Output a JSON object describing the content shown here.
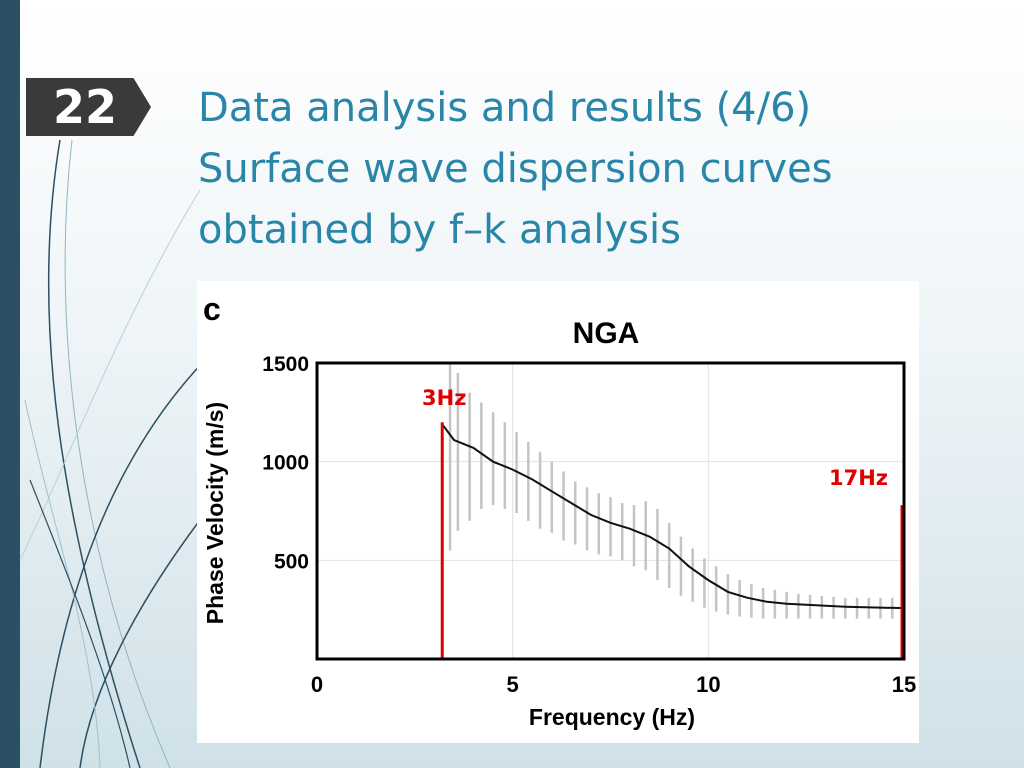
{
  "slide": {
    "number": "22",
    "title_lines": [
      "Data analysis and results (4/6)",
      "Surface wave dispersion curves",
      "obtained by f–k analysis"
    ]
  },
  "colors": {
    "accent": "#2a86a8",
    "left_bar": "#2b4f63",
    "badge": "#3a3a3a",
    "marker": "#e00000"
  },
  "figure": {
    "panel_label": "c",
    "annotations": [
      {
        "label": "3Hz",
        "x": 3.2,
        "y_top": 1200
      },
      {
        "label": "17Hz",
        "x": 15,
        "y_top": 780
      }
    ]
  },
  "chart_data": {
    "type": "line",
    "title": "NGA",
    "xlabel": "Frequency (Hz)",
    "ylabel": "Phase Velocity (m/s)",
    "xlim": [
      0,
      15
    ],
    "ylim": [
      0,
      1500
    ],
    "xticks": [
      "0",
      "5",
      "10",
      "15"
    ],
    "xtick_values": [
      0,
      5,
      10,
      15
    ],
    "yticks": [
      "500",
      "1000",
      "1500"
    ],
    "ytick_values": [
      500,
      1000,
      1500
    ],
    "grid": true,
    "series": [
      {
        "x": [
          3.2,
          3.5,
          4,
          4.5,
          5,
          5.5,
          6,
          6.5,
          7,
          7.5,
          8,
          8.5,
          9,
          9.5,
          10,
          10.5,
          11,
          11.5,
          12,
          12.5,
          13,
          13.5,
          14,
          14.5,
          15
        ],
        "y": [
          1190,
          1110,
          1070,
          1000,
          960,
          910,
          850,
          790,
          730,
          690,
          660,
          620,
          560,
          470,
          400,
          340,
          310,
          290,
          280,
          275,
          270,
          265,
          262,
          260,
          258
        ]
      }
    ],
    "error_bars": {
      "x": [
        3.4,
        3.6,
        3.9,
        4.2,
        4.5,
        4.8,
        5.1,
        5.4,
        5.7,
        6.0,
        6.3,
        6.6,
        6.9,
        7.2,
        7.5,
        7.8,
        8.1,
        8.4,
        8.7,
        9.0,
        9.3,
        9.6,
        9.9,
        10.2,
        10.5,
        10.8,
        11.1,
        11.4,
        11.7,
        12.0,
        12.3,
        12.6,
        12.9,
        13.2,
        13.5,
        13.8,
        14.1,
        14.4,
        14.7
      ],
      "low": [
        550,
        650,
        700,
        760,
        780,
        760,
        740,
        700,
        660,
        640,
        600,
        580,
        550,
        530,
        520,
        500,
        470,
        450,
        400,
        360,
        320,
        290,
        260,
        240,
        225,
        215,
        210,
        205,
        205,
        205,
        205,
        205,
        205,
        205,
        205,
        205,
        205,
        205,
        205
      ],
      "high": [
        1500,
        1450,
        1350,
        1300,
        1250,
        1200,
        1150,
        1100,
        1050,
        1000,
        950,
        900,
        870,
        840,
        820,
        790,
        780,
        800,
        760,
        690,
        620,
        560,
        510,
        470,
        430,
        400,
        380,
        360,
        350,
        340,
        330,
        325,
        320,
        315,
        310,
        310,
        310,
        310,
        310
      ]
    }
  }
}
